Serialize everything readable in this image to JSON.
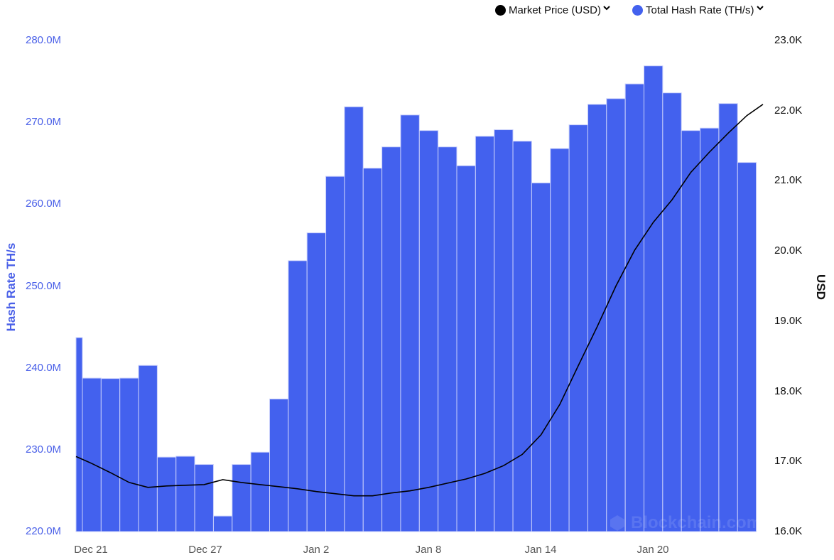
{
  "legend": {
    "items": [
      {
        "label": "Market Price (USD)",
        "color": "#000000",
        "icon": "chevron-down-icon"
      },
      {
        "label": "Total Hash Rate (TH/s)",
        "color": "#4361ee",
        "icon": "chevron-down-icon"
      }
    ]
  },
  "axes": {
    "left_label": "Hash Rate TH/s",
    "right_label": "USD",
    "left_ticks": [
      "280.0M",
      "270.0M",
      "260.0M",
      "250.0M",
      "240.0M",
      "230.0M",
      "220.0M"
    ],
    "right_ticks": [
      "23.0K",
      "22.0K",
      "21.0K",
      "20.0K",
      "19.0K",
      "18.0K",
      "17.0K",
      "16.0K"
    ],
    "x_ticks": [
      "Dec 21",
      "Dec 27",
      "Jan 2",
      "Jan 8",
      "Jan 14",
      "Jan 20"
    ]
  },
  "watermark": "Blockchain.com",
  "colors": {
    "bar": "#4361ee",
    "line": "#000000",
    "left_axis": "#4a60e8"
  },
  "chart_data": {
    "type": "bar",
    "title": "",
    "xlabel": "",
    "ylabel": "Hash Rate TH/s",
    "y2label": "USD",
    "ylim": [
      220000000,
      280000000
    ],
    "y2lim": [
      16000,
      23000
    ],
    "grid": false,
    "legend_position": "top-right",
    "x_tick_labels": [
      "Dec 21",
      "Dec 27",
      "Jan 2",
      "Jan 8",
      "Jan 14",
      "Jan 20"
    ],
    "series": [
      {
        "name": "Total Hash Rate (TH/s)",
        "type": "bar",
        "axis": "left",
        "values": [
          243.7,
          238.75,
          238.7,
          238.75,
          240.3,
          229.1,
          229.2,
          228.2,
          221.9,
          228.2,
          229.7,
          236.2,
          253.1,
          256.5,
          263.4,
          271.9,
          264.4,
          267.0,
          270.9,
          269.0,
          267.0,
          264.7,
          268.3,
          269.1,
          267.7,
          262.6,
          266.8,
          269.7,
          272.2,
          272.9,
          274.7,
          276.9,
          273.6,
          269.0,
          269.3,
          272.3,
          265.1
        ],
        "unit": "M TH/s"
      },
      {
        "name": "Market Price (USD)",
        "type": "line",
        "axis": "right",
        "values": [
          17070,
          16970,
          16840,
          16700,
          16630,
          16650,
          16660,
          16670,
          16740,
          16700,
          16670,
          16640,
          16610,
          16570,
          16540,
          16510,
          16510,
          16550,
          16580,
          16630,
          16690,
          16750,
          16830,
          16940,
          17100,
          17380,
          17810,
          18370,
          18920,
          19500,
          20010,
          20410,
          20730,
          21120,
          21410,
          21680,
          21930,
          22090
        ],
        "unit": "USD"
      }
    ]
  }
}
